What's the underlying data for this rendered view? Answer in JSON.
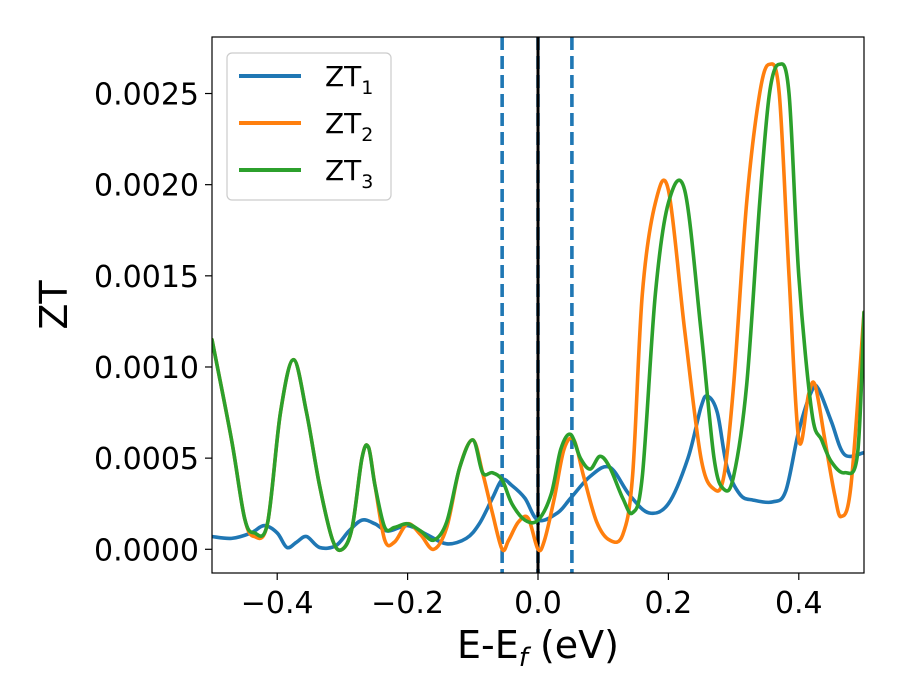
{
  "chart_data": {
    "type": "line",
    "title": "",
    "xlabel": "E-E",
    "xlabel_sub": "f",
    "xlabel_unit": " (eV)",
    "ylabel": "ZT",
    "xlim": [
      -0.5,
      0.5
    ],
    "ylim": [
      -0.00013,
      0.00281
    ],
    "x_ticks": [
      -0.4,
      -0.2,
      0.0,
      0.2,
      0.4
    ],
    "x_tick_labels": [
      "−0.4",
      "−0.2",
      "0.0",
      "0.2",
      "0.4"
    ],
    "y_ticks": [
      0.0,
      0.0005,
      0.001,
      0.0015,
      0.002,
      0.0025
    ],
    "y_tick_labels": [
      "0.0000",
      "0.0005",
      "0.0010",
      "0.0015",
      "0.0020",
      "0.0025"
    ],
    "grid": false,
    "legend_position": "top-left",
    "vlines": [
      {
        "x": -0.055,
        "style": "dashed",
        "color": "#1f77b4"
      },
      {
        "x": 0.0,
        "style": "dashed",
        "color": "#1f77b4"
      },
      {
        "x": 0.052,
        "style": "dashed",
        "color": "#1f77b4"
      },
      {
        "x": 0.0,
        "style": "solid",
        "color": "#000000"
      }
    ],
    "series": [
      {
        "name": "ZT",
        "name_sub": "1",
        "color": "#1f77b4",
        "x": [
          -0.5,
          -0.47,
          -0.44,
          -0.42,
          -0.4,
          -0.385,
          -0.37,
          -0.355,
          -0.335,
          -0.31,
          -0.29,
          -0.27,
          -0.25,
          -0.23,
          -0.2,
          -0.17,
          -0.14,
          -0.11,
          -0.09,
          -0.07,
          -0.055,
          -0.04,
          -0.02,
          0.0,
          0.03,
          0.05,
          0.08,
          0.11,
          0.14,
          0.17,
          0.2,
          0.23,
          0.25,
          0.26,
          0.275,
          0.29,
          0.31,
          0.33,
          0.36,
          0.38,
          0.4,
          0.42,
          0.43,
          0.45,
          0.47,
          0.5
        ],
        "y": [
          7e-05,
          6e-05,
          9e-05,
          0.00013,
          9e-05,
          1e-05,
          4e-05,
          7e-05,
          1e-05,
          2e-05,
          0.0001,
          0.00016,
          0.00014,
          0.0001,
          0.00013,
          8e-05,
          3e-05,
          6e-05,
          0.00014,
          0.00028,
          0.00038,
          0.00035,
          0.00028,
          0.00016,
          0.0002,
          0.00028,
          0.0004,
          0.00045,
          0.0003,
          0.0002,
          0.00025,
          0.0005,
          0.00078,
          0.00084,
          0.00075,
          0.00045,
          0.0003,
          0.00027,
          0.00026,
          0.00032,
          0.00065,
          0.00087,
          0.00088,
          0.0007,
          0.00052,
          0.00053
        ]
      },
      {
        "name": "ZT",
        "name_sub": "2",
        "color": "#ff7f0e",
        "x": [
          -0.5,
          -0.47,
          -0.45,
          -0.435,
          -0.415,
          -0.395,
          -0.375,
          -0.355,
          -0.335,
          -0.315,
          -0.3,
          -0.285,
          -0.27,
          -0.26,
          -0.25,
          -0.235,
          -0.22,
          -0.2,
          -0.18,
          -0.16,
          -0.14,
          -0.12,
          -0.1,
          -0.085,
          -0.07,
          -0.055,
          -0.045,
          -0.03,
          -0.015,
          0.0,
          0.01,
          0.025,
          0.04,
          0.055,
          0.07,
          0.09,
          0.11,
          0.13,
          0.145,
          0.16,
          0.18,
          0.2,
          0.225,
          0.25,
          0.27,
          0.285,
          0.3,
          0.32,
          0.34,
          0.355,
          0.37,
          0.385,
          0.4,
          0.415,
          0.425,
          0.44,
          0.455,
          0.465,
          0.48,
          0.5
        ],
        "y": [
          0.00115,
          0.0006,
          0.00017,
          7e-05,
          0.00014,
          0.00075,
          0.00104,
          0.00075,
          0.00035,
          5e-05,
          0.0,
          0.00012,
          0.0005,
          0.00056,
          0.00035,
          5e-05,
          4e-05,
          0.00014,
          8e-05,
          0.0,
          0.00012,
          0.00045,
          0.0006,
          0.00042,
          0.0002,
          0.0,
          5e-05,
          0.00015,
          0.00017,
          0.0,
          5e-05,
          0.00028,
          0.00055,
          0.0006,
          0.0004,
          0.00015,
          5e-05,
          8e-05,
          0.0004,
          0.0014,
          0.0019,
          0.00197,
          0.0012,
          0.0005,
          0.00033,
          0.0004,
          0.0009,
          0.0019,
          0.0025,
          0.00266,
          0.0025,
          0.0015,
          0.0006,
          0.00085,
          0.0009,
          0.0006,
          0.0003,
          0.00018,
          0.00035,
          0.0013
        ]
      },
      {
        "name": "ZT",
        "name_sub": "3",
        "color": "#2ca02c",
        "x": [
          -0.5,
          -0.47,
          -0.45,
          -0.435,
          -0.415,
          -0.395,
          -0.375,
          -0.355,
          -0.335,
          -0.315,
          -0.3,
          -0.285,
          -0.27,
          -0.26,
          -0.25,
          -0.235,
          -0.22,
          -0.2,
          -0.18,
          -0.16,
          -0.14,
          -0.12,
          -0.1,
          -0.085,
          -0.07,
          -0.055,
          -0.04,
          -0.02,
          0.0,
          0.02,
          0.035,
          0.05,
          0.065,
          0.08,
          0.095,
          0.11,
          0.13,
          0.145,
          0.16,
          0.18,
          0.2,
          0.225,
          0.25,
          0.27,
          0.285,
          0.3,
          0.32,
          0.34,
          0.355,
          0.37,
          0.385,
          0.4,
          0.42,
          0.435,
          0.45,
          0.47,
          0.49,
          0.5
        ],
        "y": [
          0.00115,
          0.0006,
          0.00017,
          9e-05,
          0.00014,
          0.00075,
          0.00104,
          0.00075,
          0.00035,
          5e-05,
          0.0,
          0.00012,
          0.0005,
          0.00056,
          0.00035,
          0.00012,
          0.00012,
          0.00014,
          0.0001,
          5e-05,
          0.00015,
          0.00045,
          0.0006,
          0.00042,
          0.00042,
          0.00038,
          0.00025,
          0.00016,
          0.00016,
          0.0003,
          0.00055,
          0.00063,
          0.0005,
          0.00044,
          0.00051,
          0.00045,
          0.00028,
          0.0002,
          0.0004,
          0.0014,
          0.0019,
          0.00197,
          0.0012,
          0.0005,
          0.00033,
          0.0004,
          0.0009,
          0.0019,
          0.0025,
          0.00266,
          0.0025,
          0.0015,
          0.00075,
          0.0006,
          0.00048,
          0.00042,
          0.00052,
          0.0013
        ]
      }
    ]
  }
}
